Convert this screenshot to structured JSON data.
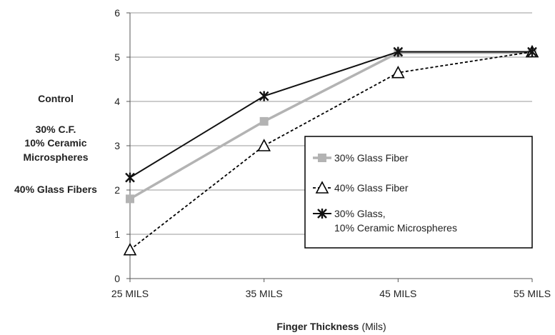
{
  "chart_data": {
    "type": "line",
    "categories": [
      "25 MILS",
      "35 MILS",
      "45 MILS",
      "55 MILS"
    ],
    "xlabel": {
      "bold": "Finger Thickness",
      "normal": "(Mils)"
    },
    "ylabel": "",
    "ylim": [
      0,
      6
    ],
    "yticks": [
      "0",
      "1",
      "2",
      "3",
      "4",
      "5",
      "6"
    ],
    "grid": true,
    "legend_position": "right-center",
    "side_labels": [
      "Control",
      "30% C.F.",
      "10% Ceramic",
      "Microspheres",
      "40% Glass Fibers"
    ],
    "series": [
      {
        "name": "30% Glass Fiber",
        "values": [
          1.8,
          3.55,
          5.1,
          5.1
        ],
        "color": "#b3b3b3",
        "style": "solid",
        "marker": "square"
      },
      {
        "name": "40% Glass Fiber",
        "values": [
          0.65,
          3.0,
          4.65,
          5.12
        ],
        "color": "#000000",
        "style": "dashed",
        "marker": "open-triangle"
      },
      {
        "name": "30% Glass,",
        "name_line2": "10% Ceramic Microspheres",
        "values": [
          2.28,
          4.12,
          5.12,
          5.12
        ],
        "color": "#111111",
        "style": "solid",
        "marker": "star"
      }
    ]
  }
}
